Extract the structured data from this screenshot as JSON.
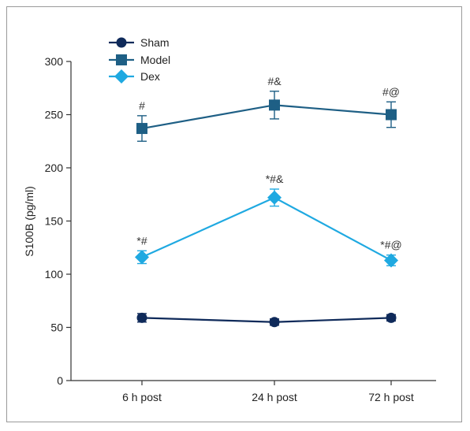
{
  "chart_data": {
    "type": "line",
    "title": "",
    "xlabel": "",
    "ylabel": "S100B (pg/ml)",
    "categories": [
      "6 h post",
      "24 h post",
      "72 h post"
    ],
    "ylim": [
      0,
      300
    ],
    "yticks": [
      0,
      50,
      100,
      150,
      200,
      250,
      300
    ],
    "grid": false,
    "legend_position": "top-left",
    "series": [
      {
        "name": "Sham",
        "marker": "circle",
        "color": "#0f2a5a",
        "values": [
          59,
          55,
          59
        ],
        "errors": [
          4,
          3,
          3
        ],
        "annotations": [
          "",
          "",
          ""
        ]
      },
      {
        "name": "Model",
        "marker": "square",
        "color": "#1e5f85",
        "values": [
          237,
          259,
          250
        ],
        "errors": [
          12,
          13,
          12
        ],
        "annotations": [
          "#",
          "#&",
          "#@"
        ]
      },
      {
        "name": "Dex",
        "marker": "diamond",
        "color": "#1fa9e1",
        "values": [
          116,
          172,
          113
        ],
        "errors": [
          6,
          8,
          5
        ],
        "annotations": [
          "*#",
          "*#&",
          "*#@"
        ]
      }
    ]
  }
}
